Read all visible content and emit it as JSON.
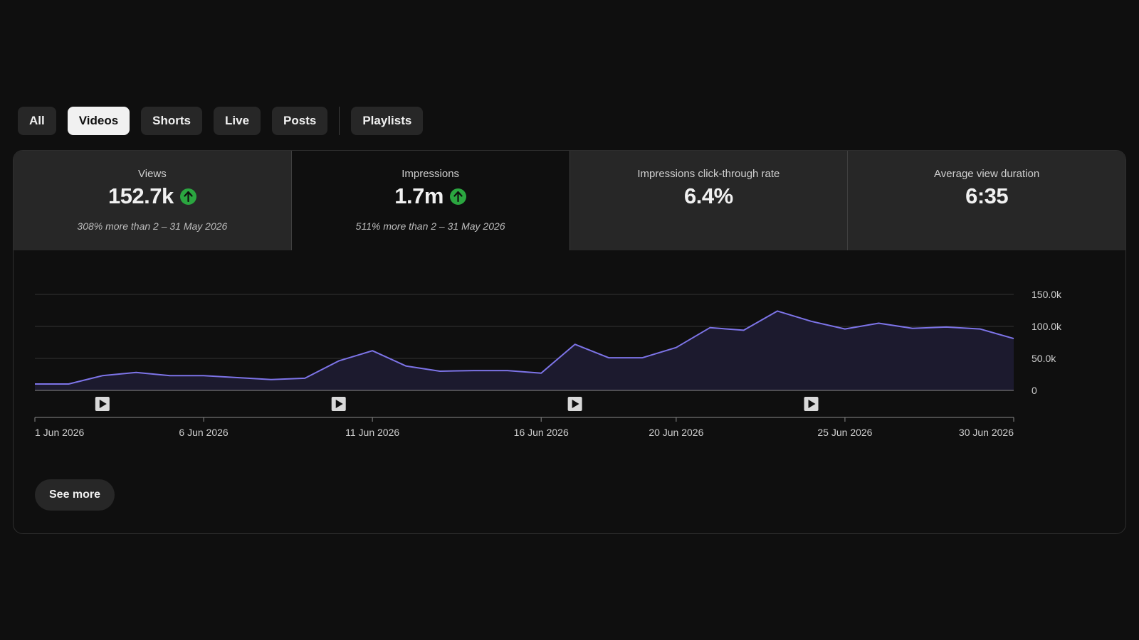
{
  "tabs": [
    {
      "label": "All",
      "selected": false
    },
    {
      "label": "Videos",
      "selected": true
    },
    {
      "label": "Shorts",
      "selected": false
    },
    {
      "label": "Live",
      "selected": false
    },
    {
      "label": "Posts",
      "selected": false
    },
    {
      "label": "Playlists",
      "selected": false
    }
  ],
  "metrics": [
    {
      "label": "Views",
      "value": "152.7k",
      "trend": "up",
      "note": "308% more than 2 – 31 May 2026",
      "selected": false
    },
    {
      "label": "Impressions",
      "value": "1.7m",
      "trend": "up",
      "note": "511% more than 2 – 31 May 2026",
      "selected": true
    },
    {
      "label": "Impressions click-through rate",
      "value": "6.4%",
      "trend": "",
      "note": "",
      "selected": false
    },
    {
      "label": "Average view duration",
      "value": "6:35",
      "trend": "",
      "note": "",
      "selected": false
    }
  ],
  "colors": {
    "accent_line": "#7d74e8",
    "area_fill": "#1c1a2e",
    "trend_up": "#2ba640",
    "selected_tab_bg": "#f1f1f1"
  },
  "chart_data": {
    "type": "area",
    "x": [
      "1 Jun 2026",
      "2 Jun 2026",
      "3 Jun 2026",
      "4 Jun 2026",
      "5 Jun 2026",
      "6 Jun 2026",
      "7 Jun 2026",
      "8 Jun 2026",
      "9 Jun 2026",
      "10 Jun 2026",
      "11 Jun 2026",
      "12 Jun 2026",
      "13 Jun 2026",
      "14 Jun 2026",
      "15 Jun 2026",
      "16 Jun 2026",
      "17 Jun 2026",
      "18 Jun 2026",
      "19 Jun 2026",
      "20 Jun 2026",
      "21 Jun 2026",
      "22 Jun 2026",
      "23 Jun 2026",
      "24 Jun 2026",
      "25 Jun 2026",
      "26 Jun 2026",
      "27 Jun 2026",
      "28 Jun 2026",
      "29 Jun 2026",
      "30 Jun 2026"
    ],
    "values": [
      10000,
      10000,
      23000,
      28000,
      23000,
      23000,
      20000,
      17000,
      19000,
      46000,
      62000,
      38000,
      30000,
      31000,
      31000,
      27000,
      72000,
      51000,
      51000,
      67000,
      98000,
      94000,
      124000,
      108000,
      96000,
      105000,
      97000,
      99000,
      96000,
      81000
    ],
    "ylim": [
      0,
      150000
    ],
    "yticks": [
      0,
      50000,
      100000,
      150000
    ],
    "ytick_labels": [
      "0",
      "50.0k",
      "100.0k",
      "150.0k"
    ],
    "xticks": [
      "1 Jun 2026",
      "6 Jun 2026",
      "11 Jun 2026",
      "16 Jun 2026",
      "20 Jun 2026",
      "25 Jun 2026",
      "30 Jun 2026"
    ],
    "video_markers": [
      "3 Jun 2026",
      "10 Jun 2026",
      "17 Jun 2026",
      "24 Jun 2026"
    ],
    "grid": true,
    "title": "",
    "xlabel": "",
    "ylabel": ""
  },
  "footer": {
    "see_more_label": "See more"
  }
}
